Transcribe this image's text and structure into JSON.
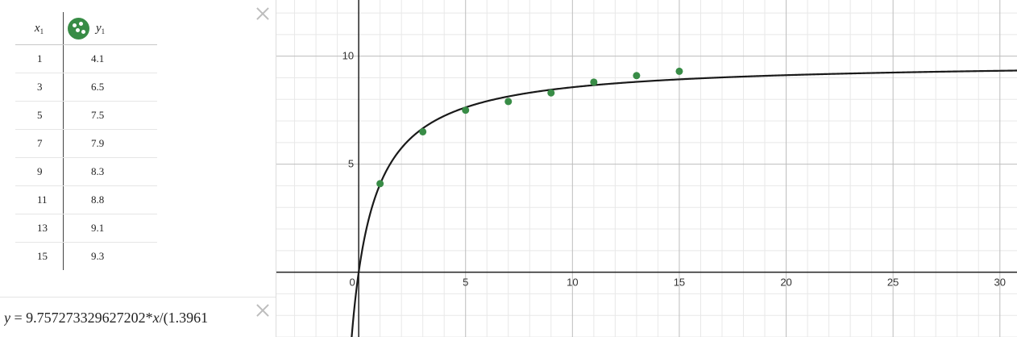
{
  "table": {
    "x_header": "x",
    "x_subscript": "1",
    "y_header": "y",
    "y_subscript": "1",
    "icon": "points-style-icon",
    "rows": [
      {
        "x": "1",
        "y": "4.1"
      },
      {
        "x": "3",
        "y": "6.5"
      },
      {
        "x": "5",
        "y": "7.5"
      },
      {
        "x": "7",
        "y": "7.9"
      },
      {
        "x": "9",
        "y": "8.3"
      },
      {
        "x": "11",
        "y": "8.8"
      },
      {
        "x": "13",
        "y": "9.1"
      },
      {
        "x": "15",
        "y": "9.3"
      }
    ]
  },
  "expression": {
    "lhs": "y",
    "equals": " = ",
    "body_prefix": "9.757273329627202*",
    "var_x": "x",
    "body_suffix": "/(1.3961"
  },
  "colors": {
    "points": "#388c46",
    "curve": "#1a1a1a",
    "axis": "#222222",
    "major_grid": "#bdbdbd",
    "minor_grid": "#e8e8e8"
  },
  "chart_data": {
    "type": "scatter",
    "x": [
      1,
      3,
      5,
      7,
      9,
      11,
      13,
      15
    ],
    "y": [
      4.1,
      6.5,
      7.5,
      7.9,
      8.3,
      8.8,
      9.1,
      9.3
    ],
    "curve": {
      "a": 9.757273329627202,
      "b": 1.3961
    },
    "xlim": [
      -3.85,
      30.8
    ],
    "ylim": [
      -3,
      12.6
    ],
    "x_ticks": [
      0,
      5,
      10,
      15,
      20,
      25,
      30
    ],
    "y_ticks": [
      5,
      10
    ],
    "x_tick_labels": [
      "0",
      "5",
      "10",
      "15",
      "20",
      "25",
      "30"
    ],
    "y_tick_labels": [
      "5",
      "10"
    ],
    "grid": true
  }
}
